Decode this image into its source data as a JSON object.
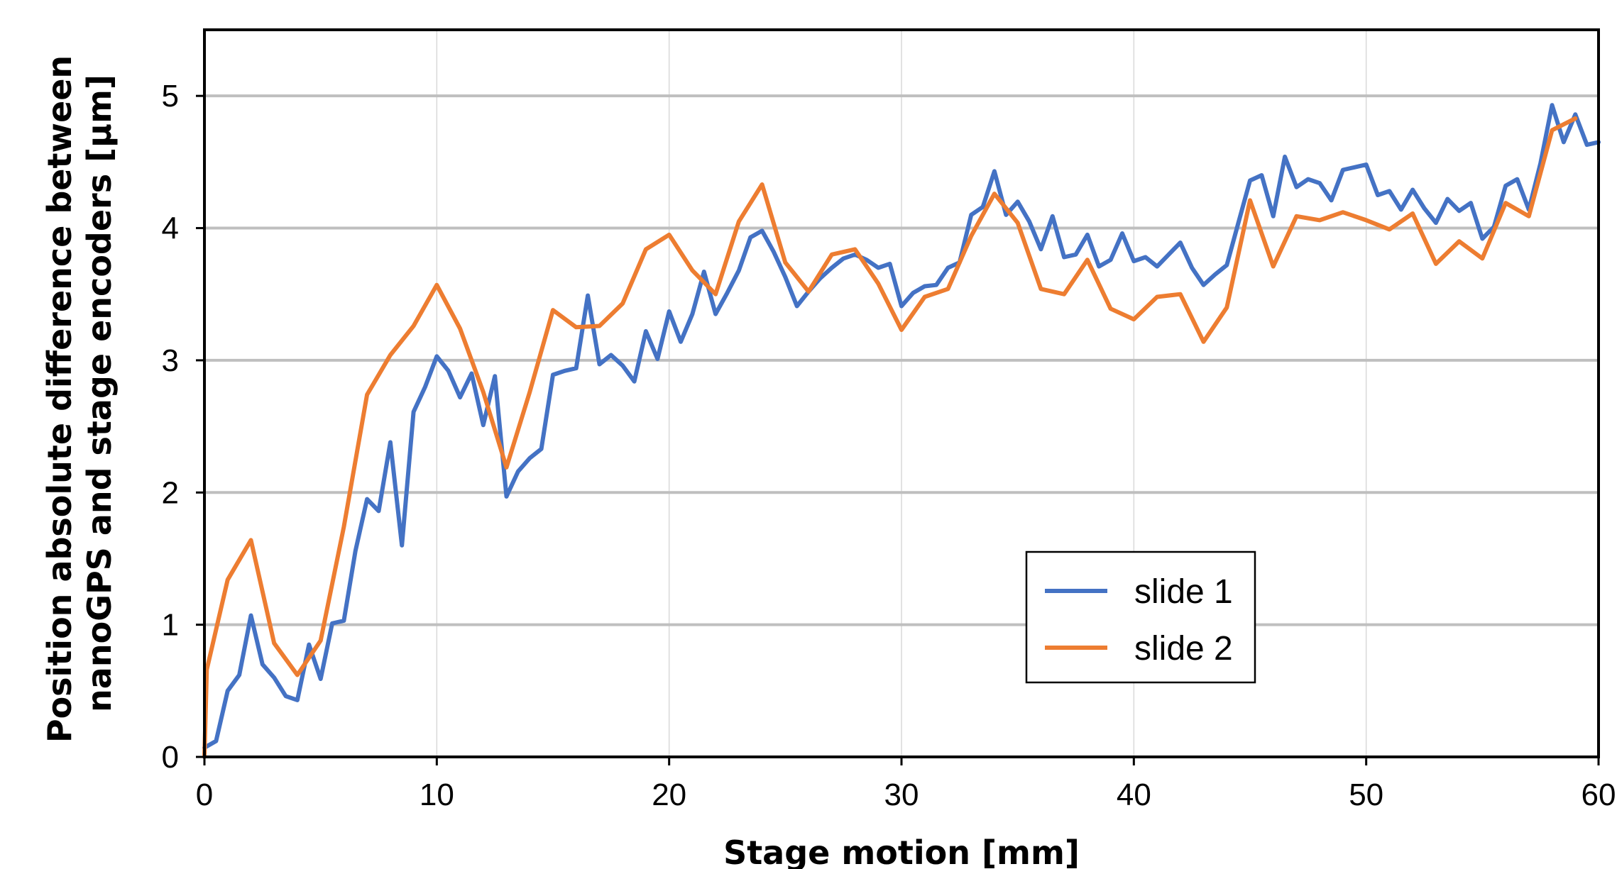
{
  "chart_data": {
    "type": "line",
    "title": "",
    "xlabel": "Stage motion [mm]",
    "ylabel_lines": [
      "Position absolute difference between",
      "nanoGPS and stage encoders [µm]"
    ],
    "xlim": [
      0,
      60
    ],
    "ylim": [
      0,
      5.5
    ],
    "x_ticks": [
      0,
      10,
      20,
      30,
      40,
      50,
      60
    ],
    "y_ticks": [
      0,
      1,
      2,
      3,
      4,
      5
    ],
    "x_tick_labels": [
      "0",
      "10",
      "20",
      "30",
      "40",
      "50",
      "60"
    ],
    "y_tick_labels": [
      "0",
      "1",
      "2",
      "3",
      "4",
      "5"
    ],
    "grid": {
      "horizontal": true,
      "vertical": true
    },
    "legend_position": "lower-right",
    "series": [
      {
        "name": "slide 1",
        "color": "#4472C4",
        "x": [
          0,
          0.5,
          1,
          1.5,
          2,
          2.5,
          3,
          3.5,
          4,
          4.5,
          5,
          5.5,
          6,
          6.5,
          7,
          7.5,
          8,
          8.5,
          9,
          9.5,
          10,
          10.5,
          11,
          11.5,
          12,
          12.5,
          13,
          13.5,
          14,
          14.5,
          15,
          15.5,
          16,
          16.5,
          17,
          17.5,
          18,
          18.5,
          19,
          19.5,
          20,
          20.5,
          21,
          21.5,
          22,
          22.5,
          23,
          23.5,
          24,
          24.5,
          25,
          25.5,
          26,
          26.5,
          27,
          27.5,
          28,
          28.5,
          29,
          29.5,
          30,
          30.5,
          31,
          31.5,
          32,
          32.5,
          33,
          33.5,
          34,
          34.5,
          35,
          35.5,
          36,
          36.5,
          37,
          37.5,
          38,
          38.5,
          39,
          39.5,
          40,
          40.5,
          41,
          41.5,
          42,
          42.5,
          43,
          43.5,
          44,
          44.5,
          45,
          45.5,
          46,
          46.5,
          47,
          47.5,
          48,
          48.5,
          49,
          49.5,
          50,
          50.5,
          51,
          51.5,
          52,
          52.5,
          53,
          53.5,
          54,
          54.5,
          55,
          55.5,
          56,
          56.5,
          57,
          57.5,
          58,
          58.5,
          59,
          59.5,
          60
        ],
        "y": [
          0.07,
          0.12,
          0.5,
          0.62,
          1.07,
          0.7,
          0.6,
          0.46,
          0.43,
          0.85,
          0.59,
          1.01,
          1.03,
          1.56,
          1.95,
          1.86,
          2.38,
          1.6,
          2.61,
          2.8,
          3.03,
          2.92,
          2.72,
          2.9,
          2.51,
          2.88,
          1.97,
          2.16,
          2.26,
          2.33,
          2.89,
          2.92,
          2.94,
          3.49,
          2.97,
          3.04,
          2.96,
          2.84,
          3.22,
          3.01,
          3.37,
          3.14,
          3.35,
          3.67,
          3.35,
          3.51,
          3.68,
          3.93,
          3.98,
          3.82,
          3.63,
          3.41,
          3.52,
          3.62,
          3.7,
          3.77,
          3.8,
          3.76,
          3.7,
          3.73,
          3.41,
          3.51,
          3.56,
          3.57,
          3.7,
          3.74,
          4.1,
          4.16,
          4.43,
          4.1,
          4.2,
          4.05,
          3.84,
          4.09,
          3.78,
          3.8,
          3.95,
          3.71,
          3.76,
          3.96,
          3.75,
          3.78,
          3.71,
          3.8,
          3.89,
          3.7,
          3.57,
          3.65,
          3.72,
          4.04,
          4.36,
          4.4,
          4.09,
          4.54,
          4.31,
          4.37,
          4.34,
          4.21,
          4.44,
          4.46,
          4.48,
          4.25,
          4.28,
          4.14,
          4.29,
          4.15,
          4.04,
          4.22,
          4.13,
          4.19,
          3.92,
          4.01,
          4.32,
          4.37,
          4.14,
          4.49,
          4.93,
          4.65,
          4.86,
          4.63,
          4.65
        ]
      },
      {
        "name": "slide 2",
        "color": "#ED7D31",
        "x": [
          0,
          0.1,
          1,
          2,
          3,
          4,
          5,
          6,
          7,
          8,
          9,
          10,
          11,
          12,
          13,
          14,
          15,
          16,
          17,
          18,
          19,
          20,
          21,
          22,
          23,
          24,
          25,
          26,
          27,
          28,
          29,
          30,
          31,
          32,
          33,
          34,
          35,
          36,
          37,
          38,
          39,
          40,
          41,
          42,
          43,
          44,
          45,
          46,
          47,
          48,
          49,
          50,
          51,
          52,
          53,
          54,
          55,
          56,
          57,
          58,
          59
        ],
        "y": [
          0,
          0.66,
          1.34,
          1.64,
          0.86,
          0.62,
          0.88,
          1.74,
          2.74,
          3.04,
          3.26,
          3.57,
          3.24,
          2.76,
          2.19,
          2.76,
          3.38,
          3.25,
          3.26,
          3.43,
          3.84,
          3.95,
          3.68,
          3.5,
          4.05,
          4.33,
          3.74,
          3.52,
          3.8,
          3.84,
          3.58,
          3.23,
          3.48,
          3.54,
          3.94,
          4.26,
          4.04,
          3.54,
          3.5,
          3.76,
          3.39,
          3.31,
          3.48,
          3.5,
          3.14,
          3.4,
          4.21,
          3.71,
          4.09,
          4.06,
          4.12,
          4.06,
          3.99,
          4.11,
          3.73,
          3.9,
          3.77,
          4.19,
          4.09,
          4.74,
          4.83
        ]
      }
    ]
  }
}
